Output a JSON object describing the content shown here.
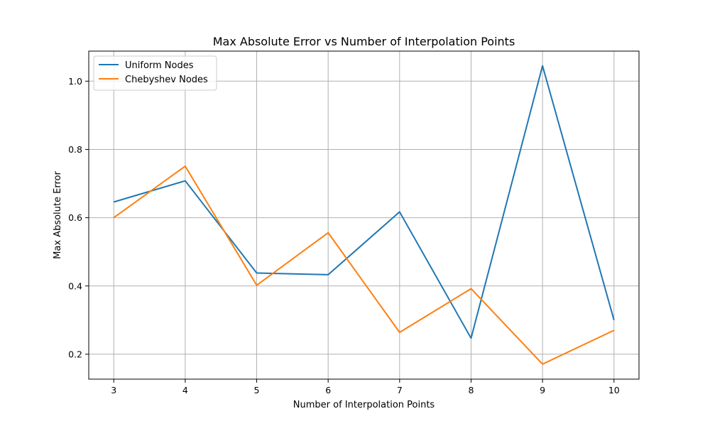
{
  "chart_data": {
    "type": "line",
    "title": "Max Absolute Error vs Number of Interpolation Points",
    "xlabel": "Number of Interpolation Points",
    "ylabel": "Max Absolute Error",
    "x": [
      3,
      4,
      5,
      6,
      7,
      8,
      9,
      10
    ],
    "xticks": [
      "3",
      "4",
      "5",
      "6",
      "7",
      "8",
      "9",
      "10"
    ],
    "yticks": [
      "0.2",
      "0.4",
      "0.6",
      "0.8",
      "1.0"
    ],
    "xlim": [
      2.65,
      10.35
    ],
    "ylim": [
      0.127,
      1.088
    ],
    "grid": true,
    "legend_position": "top-left",
    "series": [
      {
        "name": "Uniform Nodes",
        "color": "#1f77b4",
        "values": [
          0.646,
          0.708,
          0.438,
          0.433,
          0.617,
          0.247,
          1.045,
          0.3
        ]
      },
      {
        "name": "Chebyshev Nodes",
        "color": "#ff7f0e",
        "values": [
          0.6,
          0.751,
          0.402,
          0.556,
          0.264,
          0.392,
          0.171,
          0.27
        ]
      }
    ]
  }
}
